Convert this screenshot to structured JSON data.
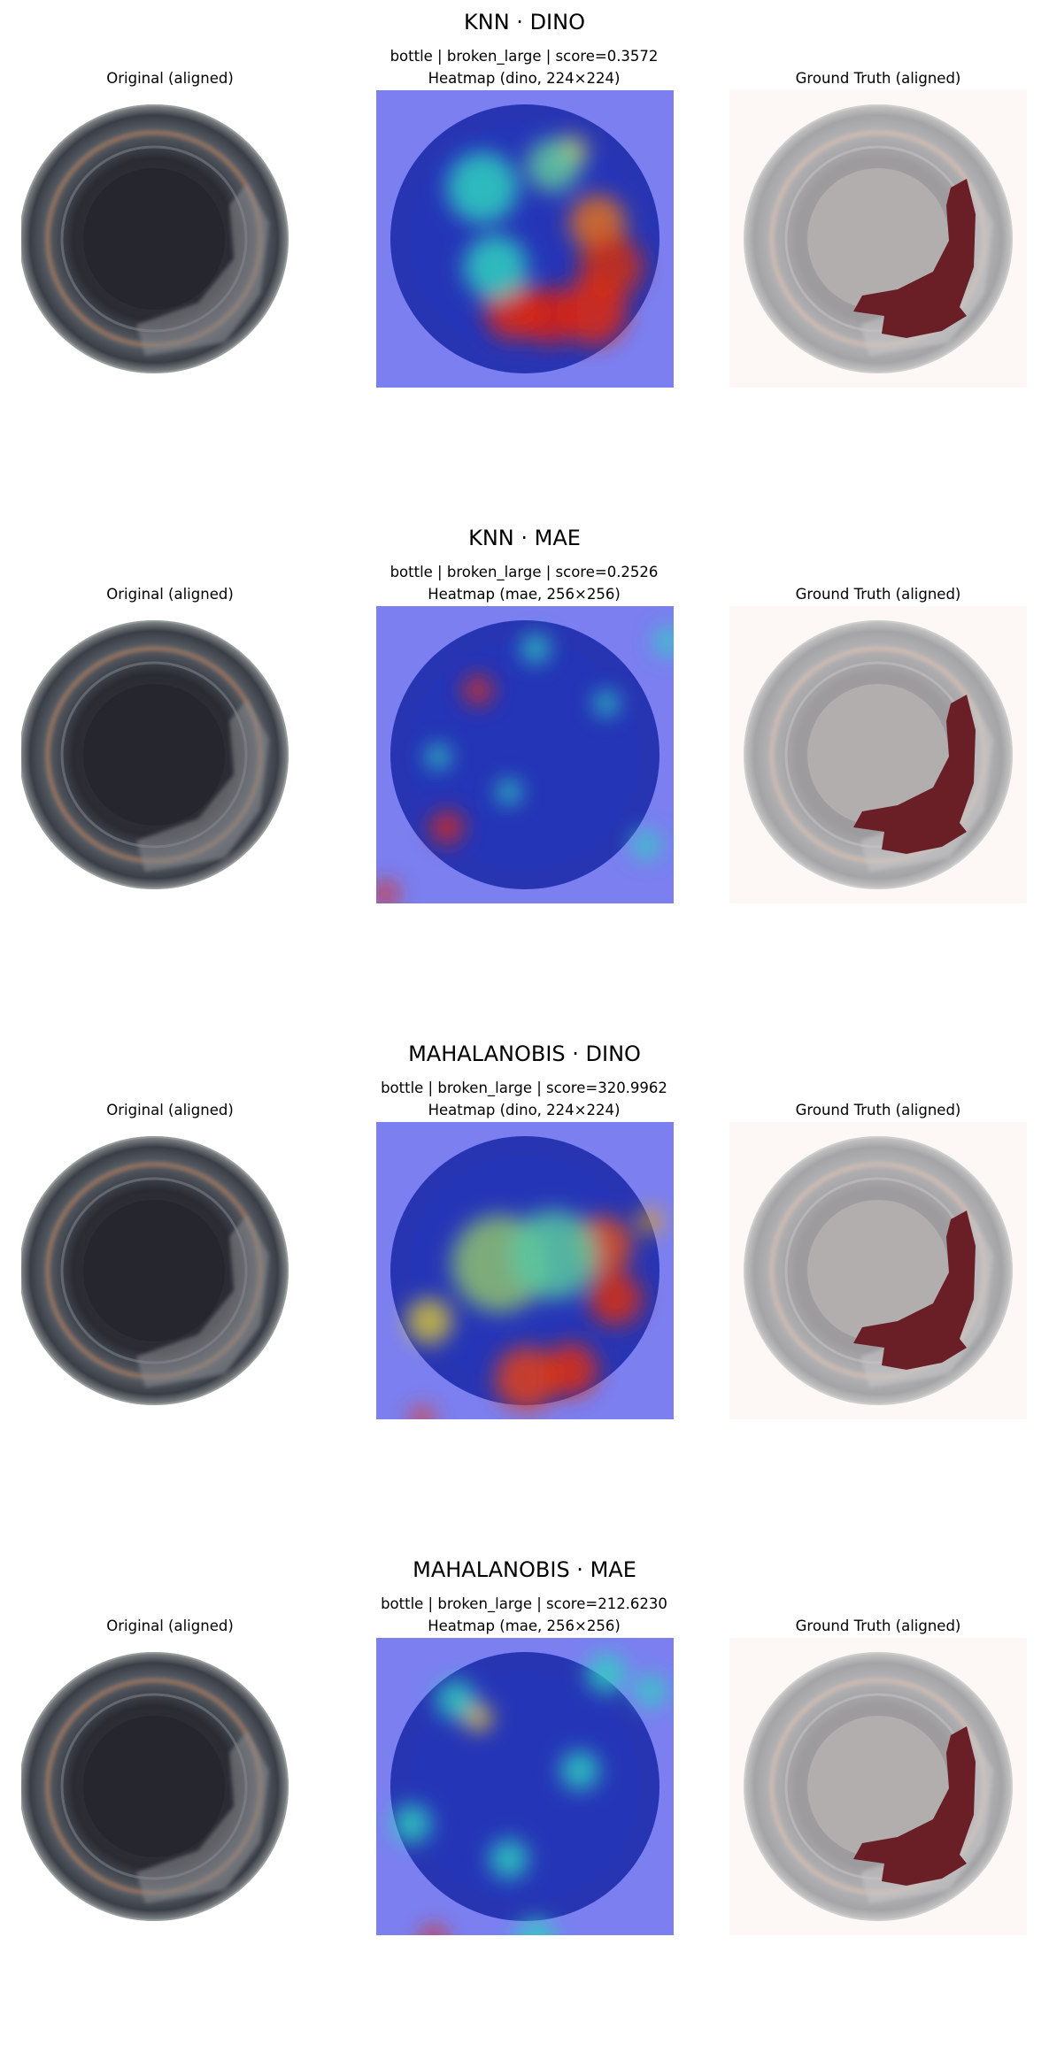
{
  "figure": {
    "rows": [
      {
        "title": "KNN · DINO",
        "original_label": "Original (aligned)",
        "heatmap_score_line": "bottle | broken_large | score=0.3572",
        "heatmap_label": "Heatmap (dino, 224×224)",
        "gt_label": "Ground Truth (aligned)"
      },
      {
        "title": "KNN · MAE",
        "original_label": "Original (aligned)",
        "heatmap_score_line": "bottle | broken_large | score=0.2526",
        "heatmap_label": "Heatmap (mae, 256×256)",
        "gt_label": "Ground Truth (aligned)"
      },
      {
        "title": "MAHALANOBIS · DINO",
        "original_label": "Original (aligned)",
        "heatmap_score_line": "bottle | broken_large | score=320.9962",
        "heatmap_label": "Heatmap (dino, 224×224)",
        "gt_label": "Ground Truth (aligned)"
      },
      {
        "title": "MAHALANOBIS · MAE",
        "original_label": "Original (aligned)",
        "heatmap_score_line": "bottle | broken_large | score=212.6230",
        "heatmap_label": "Heatmap (mae, 256×256)",
        "gt_label": "Ground Truth (aligned)"
      }
    ]
  },
  "colors": {
    "heatmap_low": "#7b7ff0",
    "heatmap_mid": "#2fd0c0",
    "heatmap_high": "#e02a10",
    "gt_mask": "#6a1e26",
    "gt_background": "#fdf8f6"
  }
}
